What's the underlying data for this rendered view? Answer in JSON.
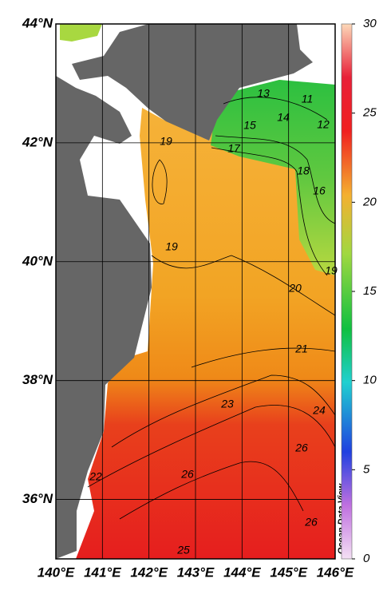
{
  "map": {
    "lat_ticks": [
      {
        "value": 44,
        "label": "44°N"
      },
      {
        "value": 42,
        "label": "42°N"
      },
      {
        "value": 40,
        "label": "40°N"
      },
      {
        "value": 38,
        "label": "38°N"
      },
      {
        "value": 36,
        "label": "36°N"
      }
    ],
    "lon_ticks": [
      {
        "value": 140,
        "label": "140°E"
      },
      {
        "value": 141,
        "label": "141°E"
      },
      {
        "value": 142,
        "label": "142°E"
      },
      {
        "value": 143,
        "label": "143°E"
      },
      {
        "value": 144,
        "label": "144°E"
      },
      {
        "value": 145,
        "label": "145°E"
      },
      {
        "value": 146,
        "label": "146°E"
      }
    ],
    "colorbar": {
      "range": [
        0,
        30
      ],
      "ticks": [
        0,
        5,
        10,
        15,
        20,
        25,
        30
      ]
    },
    "contour_labels": [
      13,
      11,
      14,
      12,
      15,
      17,
      18,
      16,
      19,
      19,
      19,
      20,
      21,
      23,
      24,
      26,
      26,
      22,
      26,
      25
    ],
    "credit": "Ocean Data View"
  }
}
